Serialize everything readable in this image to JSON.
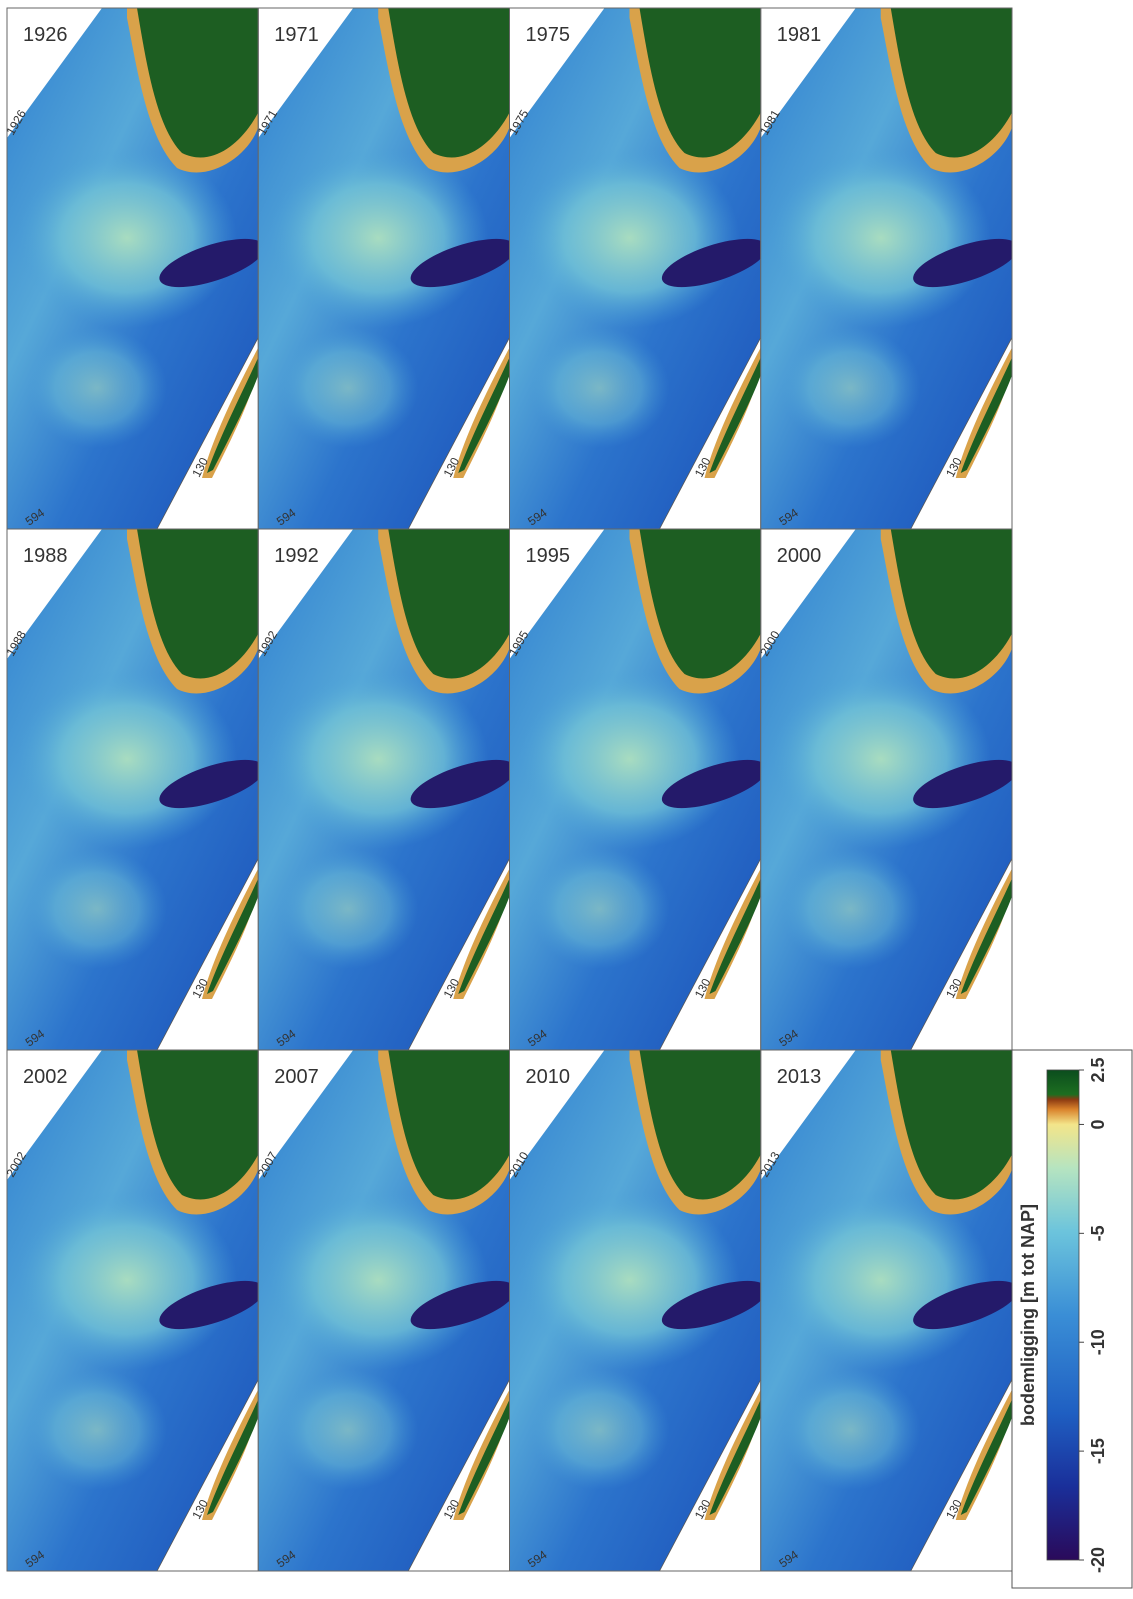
{
  "panels": [
    {
      "year": "1926",
      "corner_label": "1926",
      "grid_labels": [
        "130",
        "594"
      ]
    },
    {
      "year": "1971",
      "corner_label": "1971",
      "grid_labels": [
        "130",
        "594"
      ]
    },
    {
      "year": "1975",
      "corner_label": "1975",
      "grid_labels": [
        "130",
        "594"
      ]
    },
    {
      "year": "1981",
      "corner_label": "1981",
      "grid_labels": [
        "130",
        "594"
      ]
    },
    {
      "year": "1988",
      "corner_label": "1988",
      "grid_labels": [
        "130",
        "594"
      ]
    },
    {
      "year": "1992",
      "corner_label": "1992",
      "grid_labels": [
        "130",
        "594"
      ]
    },
    {
      "year": "1995",
      "corner_label": "1995",
      "grid_labels": [
        "130",
        "594"
      ]
    },
    {
      "year": "2000",
      "corner_label": "2000",
      "grid_labels": [
        "130",
        "594"
      ]
    },
    {
      "year": "2002",
      "corner_label": "2002",
      "grid_labels": [
        "130",
        "594"
      ]
    },
    {
      "year": "2007",
      "corner_label": "2007",
      "grid_labels": [
        "130",
        "594"
      ]
    },
    {
      "year": "2010",
      "corner_label": "2010",
      "grid_labels": [
        "130",
        "594"
      ]
    },
    {
      "year": "2013",
      "corner_label": "2013",
      "grid_labels": [
        "130",
        "594"
      ]
    }
  ],
  "colorbar": {
    "label": "bodemligging [m tot NAP]",
    "range": [
      -20,
      2.5
    ],
    "ticks": [
      2.5,
      0,
      -5,
      -10,
      -15,
      -20
    ]
  }
}
